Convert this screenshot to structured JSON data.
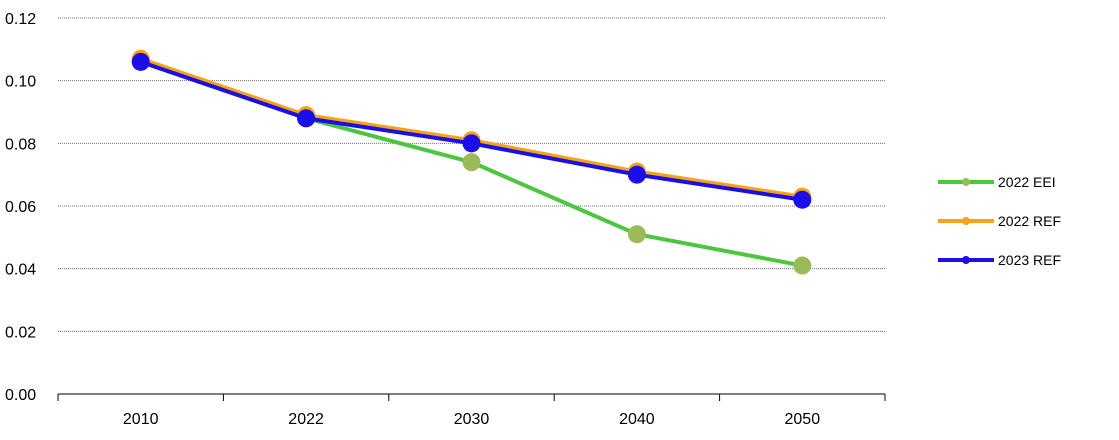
{
  "chart_data": {
    "type": "line",
    "title": "",
    "xlabel": "",
    "ylabel": "",
    "categories": [
      "2010",
      "2022",
      "2030",
      "2040",
      "2050"
    ],
    "ylim": [
      0,
      0.12
    ],
    "yticks": [
      "0.00",
      "0.02",
      "0.04",
      "0.06",
      "0.08",
      "0.10",
      "0.12"
    ],
    "grid": true,
    "legend_position": "right",
    "series": [
      {
        "name": "2022 EEI",
        "color": "#4CC63F",
        "marker_color": "#9BBB59",
        "values": [
          0.106,
          0.088,
          0.074,
          0.051,
          0.041
        ]
      },
      {
        "name": "2022 REF",
        "color": "#F6A21A",
        "marker_color": "#F6A21A",
        "values": [
          0.107,
          0.089,
          0.081,
          0.071,
          0.063
        ]
      },
      {
        "name": "2023 REF",
        "color": "#1A0FE8",
        "marker_color": "#1A0FE8",
        "values": [
          0.106,
          0.088,
          0.08,
          0.07,
          0.062
        ]
      }
    ]
  }
}
